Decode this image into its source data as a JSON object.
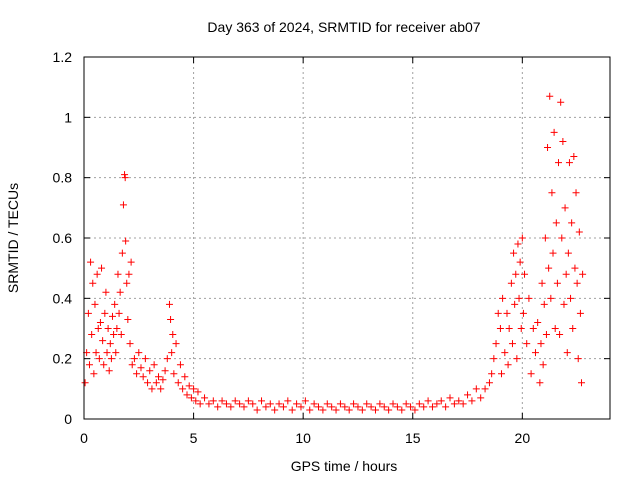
{
  "colors": {
    "data": "#ff0000",
    "axis": "#000000",
    "grid": "#a0a0a0"
  },
  "chart_data": {
    "type": "scatter",
    "title": "Day 363 of 2024, SRMTID for receiver ab07",
    "xlabel": "GPS time / hours",
    "ylabel": "SRMTID / TECUs",
    "xlim": [
      0,
      24
    ],
    "ylim": [
      0,
      1.2
    ],
    "x_ticks": [
      0,
      5,
      10,
      15,
      20
    ],
    "x_tick_labels": [
      "0",
      "5",
      "10",
      "15",
      "20"
    ],
    "y_ticks": [
      0,
      0.2,
      0.4,
      0.6,
      0.8,
      1,
      1.2
    ],
    "y_tick_labels": [
      "0",
      "0.2",
      "0.4",
      "0.6",
      "0.8",
      "1",
      "1.2"
    ],
    "grid": true,
    "marker": "plus",
    "series": [
      {
        "name": "SRMTID",
        "points": [
          [
            0.05,
            0.12
          ],
          [
            0.12,
            0.22
          ],
          [
            0.2,
            0.35
          ],
          [
            0.25,
            0.18
          ],
          [
            0.3,
            0.52
          ],
          [
            0.35,
            0.28
          ],
          [
            0.4,
            0.45
          ],
          [
            0.45,
            0.15
          ],
          [
            0.5,
            0.38
          ],
          [
            0.55,
            0.22
          ],
          [
            0.6,
            0.48
          ],
          [
            0.65,
            0.3
          ],
          [
            0.7,
            0.2
          ],
          [
            0.75,
            0.32
          ],
          [
            0.8,
            0.5
          ],
          [
            0.85,
            0.26
          ],
          [
            0.9,
            0.18
          ],
          [
            0.95,
            0.35
          ],
          [
            1.0,
            0.42
          ],
          [
            1.05,
            0.22
          ],
          [
            1.1,
            0.3
          ],
          [
            1.15,
            0.16
          ],
          [
            1.2,
            0.25
          ],
          [
            1.25,
            0.2
          ],
          [
            1.3,
            0.34
          ],
          [
            1.35,
            0.28
          ],
          [
            1.4,
            0.38
          ],
          [
            1.45,
            0.22
          ],
          [
            1.5,
            0.3
          ],
          [
            1.55,
            0.48
          ],
          [
            1.6,
            0.35
          ],
          [
            1.65,
            0.42
          ],
          [
            1.7,
            0.28
          ],
          [
            1.75,
            0.55
          ],
          [
            1.8,
            0.71
          ],
          [
            1.85,
            0.81
          ],
          [
            1.88,
            0.8
          ],
          [
            1.9,
            0.59
          ],
          [
            1.95,
            0.45
          ],
          [
            2.0,
            0.33
          ],
          [
            2.05,
            0.48
          ],
          [
            2.1,
            0.25
          ],
          [
            2.15,
            0.52
          ],
          [
            2.2,
            0.18
          ],
          [
            2.3,
            0.2
          ],
          [
            2.4,
            0.15
          ],
          [
            2.5,
            0.22
          ],
          [
            2.6,
            0.17
          ],
          [
            2.7,
            0.14
          ],
          [
            2.8,
            0.2
          ],
          [
            2.9,
            0.12
          ],
          [
            3.0,
            0.16
          ],
          [
            3.1,
            0.1
          ],
          [
            3.2,
            0.18
          ],
          [
            3.3,
            0.12
          ],
          [
            3.4,
            0.14
          ],
          [
            3.5,
            0.1
          ],
          [
            3.6,
            0.13
          ],
          [
            3.7,
            0.16
          ],
          [
            3.8,
            0.2
          ],
          [
            3.9,
            0.38
          ],
          [
            3.95,
            0.33
          ],
          [
            4.0,
            0.22
          ],
          [
            4.05,
            0.28
          ],
          [
            4.1,
            0.15
          ],
          [
            4.2,
            0.25
          ],
          [
            4.3,
            0.12
          ],
          [
            4.4,
            0.18
          ],
          [
            4.5,
            0.1
          ],
          [
            4.6,
            0.14
          ],
          [
            4.7,
            0.08
          ],
          [
            4.8,
            0.11
          ],
          [
            4.9,
            0.07
          ],
          [
            5.0,
            0.1
          ],
          [
            5.1,
            0.06
          ],
          [
            5.2,
            0.09
          ],
          [
            5.3,
            0.05
          ],
          [
            5.5,
            0.07
          ],
          [
            5.7,
            0.05
          ],
          [
            5.9,
            0.06
          ],
          [
            6.1,
            0.04
          ],
          [
            6.3,
            0.06
          ],
          [
            6.5,
            0.05
          ],
          [
            6.7,
            0.04
          ],
          [
            6.9,
            0.06
          ],
          [
            7.1,
            0.05
          ],
          [
            7.3,
            0.04
          ],
          [
            7.5,
            0.06
          ],
          [
            7.7,
            0.05
          ],
          [
            7.9,
            0.03
          ],
          [
            8.1,
            0.06
          ],
          [
            8.3,
            0.04
          ],
          [
            8.5,
            0.05
          ],
          [
            8.7,
            0.03
          ],
          [
            8.9,
            0.05
          ],
          [
            9.1,
            0.04
          ],
          [
            9.3,
            0.06
          ],
          [
            9.5,
            0.03
          ],
          [
            9.7,
            0.05
          ],
          [
            9.9,
            0.04
          ],
          [
            10.1,
            0.06
          ],
          [
            10.3,
            0.03
          ],
          [
            10.5,
            0.05
          ],
          [
            10.7,
            0.04
          ],
          [
            10.9,
            0.03
          ],
          [
            11.1,
            0.05
          ],
          [
            11.3,
            0.04
          ],
          [
            11.5,
            0.03
          ],
          [
            11.7,
            0.05
          ],
          [
            11.9,
            0.04
          ],
          [
            12.1,
            0.03
          ],
          [
            12.3,
            0.05
          ],
          [
            12.5,
            0.04
          ],
          [
            12.7,
            0.03
          ],
          [
            12.9,
            0.05
          ],
          [
            13.1,
            0.04
          ],
          [
            13.3,
            0.03
          ],
          [
            13.5,
            0.05
          ],
          [
            13.7,
            0.04
          ],
          [
            13.9,
            0.03
          ],
          [
            14.1,
            0.05
          ],
          [
            14.3,
            0.04
          ],
          [
            14.5,
            0.03
          ],
          [
            14.7,
            0.05
          ],
          [
            14.9,
            0.04
          ],
          [
            15.1,
            0.03
          ],
          [
            15.3,
            0.05
          ],
          [
            15.5,
            0.04
          ],
          [
            15.7,
            0.06
          ],
          [
            15.9,
            0.04
          ],
          [
            16.1,
            0.05
          ],
          [
            16.3,
            0.06
          ],
          [
            16.5,
            0.04
          ],
          [
            16.7,
            0.07
          ],
          [
            16.9,
            0.05
          ],
          [
            17.1,
            0.06
          ],
          [
            17.3,
            0.05
          ],
          [
            17.5,
            0.08
          ],
          [
            17.7,
            0.06
          ],
          [
            17.9,
            0.1
          ],
          [
            18.1,
            0.07
          ],
          [
            18.3,
            0.1
          ],
          [
            18.5,
            0.12
          ],
          [
            18.6,
            0.15
          ],
          [
            18.7,
            0.2
          ],
          [
            18.8,
            0.25
          ],
          [
            18.9,
            0.35
          ],
          [
            19.0,
            0.3
          ],
          [
            19.05,
            0.15
          ],
          [
            19.1,
            0.4
          ],
          [
            19.2,
            0.22
          ],
          [
            19.3,
            0.35
          ],
          [
            19.35,
            0.18
          ],
          [
            19.4,
            0.3
          ],
          [
            19.5,
            0.45
          ],
          [
            19.55,
            0.25
          ],
          [
            19.6,
            0.55
          ],
          [
            19.65,
            0.38
          ],
          [
            19.7,
            0.48
          ],
          [
            19.75,
            0.2
          ],
          [
            19.8,
            0.58
          ],
          [
            19.85,
            0.4
          ],
          [
            19.9,
            0.52
          ],
          [
            19.95,
            0.3
          ],
          [
            20.0,
            0.6
          ],
          [
            20.05,
            0.35
          ],
          [
            20.1,
            0.48
          ],
          [
            20.2,
            0.25
          ],
          [
            20.3,
            0.4
          ],
          [
            20.4,
            0.15
          ],
          [
            20.5,
            0.3
          ],
          [
            20.6,
            0.22
          ],
          [
            20.7,
            0.32
          ],
          [
            20.8,
            0.12
          ],
          [
            20.85,
            0.25
          ],
          [
            20.9,
            0.45
          ],
          [
            20.95,
            0.18
          ],
          [
            21.0,
            0.38
          ],
          [
            21.05,
            0.6
          ],
          [
            21.1,
            0.28
          ],
          [
            21.15,
            0.9
          ],
          [
            21.2,
            0.5
          ],
          [
            21.25,
            1.07
          ],
          [
            21.3,
            0.4
          ],
          [
            21.35,
            0.75
          ],
          [
            21.4,
            0.55
          ],
          [
            21.45,
            0.95
          ],
          [
            21.5,
            0.3
          ],
          [
            21.55,
            0.65
          ],
          [
            21.6,
            0.45
          ],
          [
            21.65,
            0.85
          ],
          [
            21.7,
            0.28
          ],
          [
            21.75,
            1.05
          ],
          [
            21.8,
            0.6
          ],
          [
            21.85,
            0.92
          ],
          [
            21.9,
            0.38
          ],
          [
            21.95,
            0.7
          ],
          [
            22.0,
            0.48
          ],
          [
            22.05,
            0.22
          ],
          [
            22.1,
            0.55
          ],
          [
            22.15,
            0.85
          ],
          [
            22.2,
            0.4
          ],
          [
            22.25,
            0.65
          ],
          [
            22.3,
            0.3
          ],
          [
            22.35,
            0.87
          ],
          [
            22.4,
            0.5
          ],
          [
            22.45,
            0.75
          ],
          [
            22.5,
            0.45
          ],
          [
            22.55,
            0.2
          ],
          [
            22.6,
            0.62
          ],
          [
            22.65,
            0.35
          ],
          [
            22.7,
            0.12
          ],
          [
            22.75,
            0.48
          ]
        ]
      }
    ]
  }
}
